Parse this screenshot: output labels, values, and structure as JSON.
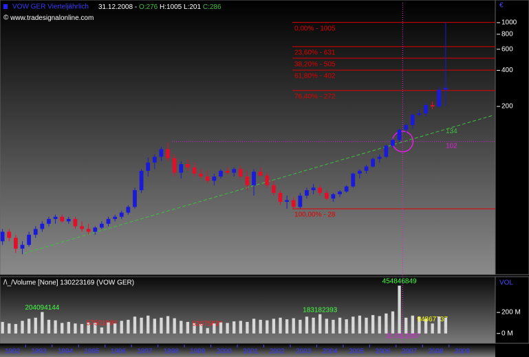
{
  "header": {
    "symbol": "VOW GER Vierteljährlich",
    "date": "31.12.2008 -",
    "open": "O:276",
    "high_low": "H:1005 L:201",
    "close": "C:286",
    "source": "www.tradesignalonline.com",
    "currency": "€"
  },
  "chart_data": [
    {
      "type": "candlestick",
      "x": [
        1992.125,
        1992.375,
        1992.625,
        1992.875,
        1993.125,
        1993.375,
        1993.625,
        1993.875,
        1994.125,
        1994.375,
        1994.625,
        1994.875,
        1995.125,
        1995.375,
        1995.625,
        1995.875,
        1996.125,
        1996.375,
        1996.625,
        1996.875,
        1997.125,
        1997.375,
        1997.625,
        1997.875,
        1998.125,
        1998.375,
        1998.625,
        1998.875,
        1999.125,
        1999.375,
        1999.625,
        1999.875,
        2000.125,
        2000.375,
        2000.625,
        2000.875,
        2001.125,
        2001.375,
        2001.625,
        2001.875,
        2002.125,
        2002.375,
        2002.625,
        2002.875,
        2003.125,
        2003.375,
        2003.625,
        2003.875,
        2004.125,
        2004.375,
        2004.625,
        2004.875,
        2005.125,
        2005.375,
        2005.625,
        2005.875,
        2006.125,
        2006.375,
        2006.625,
        2006.875,
        2007.125,
        2007.375,
        2007.625,
        2007.875,
        2008.125,
        2008.375,
        2008.625,
        2008.875
      ],
      "open": [
        15,
        18,
        16,
        13,
        14,
        17,
        19,
        21,
        23,
        24,
        22,
        23,
        20,
        19,
        18,
        19.5,
        21,
        23,
        24,
        26,
        29,
        40,
        58,
        68,
        76,
        88,
        74,
        56,
        66,
        62,
        55,
        52,
        48,
        52,
        58,
        56,
        60,
        52,
        44,
        57,
        53,
        44,
        38,
        32,
        33,
        29,
        36,
        40,
        42,
        38,
        34,
        37,
        39,
        43,
        55,
        58,
        63,
        73,
        76,
        94,
        105,
        128,
        140,
        170,
        175,
        205,
        200,
        276
      ],
      "high": [
        19,
        19,
        17,
        15,
        18,
        20,
        22,
        24,
        25,
        25,
        24,
        24,
        22,
        21,
        20,
        22,
        24,
        25,
        27,
        30,
        42,
        60,
        75,
        80,
        92,
        100,
        80,
        70,
        72,
        68,
        60,
        58,
        55,
        60,
        62,
        62,
        64,
        58,
        60,
        62,
        56,
        48,
        40,
        36,
        35,
        38,
        42,
        45,
        44,
        40,
        38,
        40,
        44,
        56,
        60,
        65,
        75,
        80,
        96,
        108,
        130,
        145,
        175,
        190,
        215,
        220,
        290,
        1005
      ],
      "low": [
        14,
        15,
        12,
        11.7,
        13.5,
        16,
        18,
        20,
        21,
        21.5,
        21,
        19,
        18,
        17,
        17,
        19,
        20,
        22,
        23,
        25,
        28,
        38,
        52,
        60,
        70,
        70,
        52,
        50,
        58,
        52,
        50,
        46,
        44,
        50,
        54,
        52,
        50,
        40,
        36,
        52,
        42,
        36,
        30,
        28,
        28,
        28,
        34,
        37,
        36,
        33,
        32,
        35,
        38,
        42,
        50,
        55,
        62,
        68,
        74,
        90,
        100,
        120,
        130,
        165,
        165,
        190,
        195,
        201
      ],
      "close": [
        18,
        16,
        13,
        14,
        17,
        19,
        21,
        23,
        24,
        22,
        23,
        20,
        19,
        18,
        19.5,
        21,
        23,
        24,
        26,
        29,
        40,
        58,
        68,
        76,
        88,
        74,
        56,
        66,
        62,
        55,
        52,
        48,
        52,
        58,
        56,
        60,
        52,
        44,
        57,
        53,
        44,
        38,
        32,
        33,
        29,
        36,
        40,
        42,
        38,
        34,
        37,
        39,
        43,
        55,
        58,
        63,
        73,
        76,
        94,
        105,
        128,
        140,
        170,
        175,
        205,
        200,
        276,
        286
      ],
      "up_color": "#1a1ad8",
      "down_color": "#e0102a",
      "xlim": [
        1992.03,
        2010.75
      ],
      "ylim": [
        7.9,
        1466
      ],
      "log_scale": true,
      "yticks": [
        200,
        400,
        600,
        800,
        1000
      ],
      "fib_color": "#e00000",
      "fib_levels": [
        {
          "label": "0,00% - 1005",
          "value": 1005
        },
        {
          "label": "23,60% - 631",
          "value": 631
        },
        {
          "label": "38,20% - 505",
          "value": 505
        },
        {
          "label": "61,80% - 402",
          "value": 402
        },
        {
          "label": "76,40% - 272",
          "value": 272
        },
        {
          "label": "100,00% - 28",
          "value": 28
        }
      ],
      "trend": {
        "x": [
          1992.94,
          2010.64
        ],
        "y": [
          11.9,
          168
        ],
        "color": "#40c040"
      },
      "trend_label": 134,
      "marker": {
        "label": "31.03.2007",
        "x": 2007.25,
        "y": 102,
        "color": "#e020e0"
      }
    },
    {
      "type": "bar",
      "title": "/\\_/Volume [None] 130223169 (VOW GER)",
      "axis_label": "VOL",
      "x": [
        1992.125,
        1992.375,
        1992.625,
        1992.875,
        1993.125,
        1993.375,
        1993.625,
        1993.875,
        1994.125,
        1994.375,
        1994.625,
        1994.875,
        1995.125,
        1995.375,
        1995.625,
        1995.875,
        1996.125,
        1996.375,
        1996.625,
        1996.875,
        1997.125,
        1997.375,
        1997.625,
        1997.875,
        1998.125,
        1998.375,
        1998.625,
        1998.875,
        1999.125,
        1999.375,
        1999.625,
        1999.875,
        2000.125,
        2000.375,
        2000.625,
        2000.875,
        2001.125,
        2001.375,
        2001.625,
        2001.875,
        2002.125,
        2002.375,
        2002.625,
        2002.875,
        2003.125,
        2003.375,
        2003.625,
        2003.875,
        2004.125,
        2004.375,
        2004.625,
        2004.875,
        2005.125,
        2005.375,
        2005.625,
        2005.875,
        2006.125,
        2006.375,
        2006.625,
        2006.875,
        2007.125,
        2007.375,
        2007.625,
        2007.875,
        2008.125,
        2008.375,
        2008.625,
        2008.875
      ],
      "values": [
        110000000,
        95000000,
        90000000,
        120000000,
        140000000,
        150000000,
        204094144,
        130000000,
        125000000,
        100000000,
        110000000,
        95000000,
        90000000,
        105000000,
        100000000,
        57501898,
        105000000,
        95000000,
        120000000,
        130000000,
        160000000,
        150000000,
        170000000,
        140000000,
        150000000,
        165000000,
        145000000,
        120000000,
        110000000,
        100000000,
        90000000,
        52075839,
        95000000,
        105000000,
        100000000,
        115000000,
        120000000,
        110000000,
        140000000,
        130000000,
        125000000,
        140000000,
        150000000,
        135000000,
        145000000,
        130000000,
        160000000,
        150000000,
        183182393,
        140000000,
        130000000,
        150000000,
        135000000,
        160000000,
        170000000,
        150000000,
        175000000,
        165000000,
        190000000,
        210000000,
        454846849,
        150000000,
        170000000,
        160000000,
        140000000,
        94867737,
        160000000,
        150000000
      ],
      "value_labels": [
        null,
        null,
        null,
        null,
        null,
        null,
        "204094144",
        null,
        null,
        null,
        null,
        null,
        null,
        null,
        null,
        "57501898",
        null,
        null,
        null,
        null,
        null,
        null,
        null,
        null,
        null,
        null,
        null,
        null,
        null,
        null,
        null,
        "52075839",
        null,
        null,
        null,
        null,
        null,
        null,
        null,
        null,
        null,
        null,
        null,
        null,
        null,
        null,
        null,
        null,
        "183182393",
        null,
        null,
        null,
        null,
        null,
        null,
        null,
        null,
        null,
        null,
        null,
        "454846849",
        null,
        null,
        null,
        null,
        "94867737",
        null,
        null
      ],
      "value_label_colors": [
        null,
        null,
        null,
        null,
        null,
        null,
        "#40ff40",
        null,
        null,
        null,
        null,
        null,
        null,
        null,
        null,
        "#ff2020",
        null,
        null,
        null,
        null,
        null,
        null,
        null,
        null,
        null,
        null,
        null,
        null,
        null,
        null,
        null,
        "#ff2020",
        null,
        null,
        null,
        null,
        null,
        null,
        null,
        null,
        null,
        null,
        null,
        null,
        null,
        null,
        null,
        null,
        "#40ff40",
        null,
        null,
        null,
        null,
        null,
        null,
        null,
        null,
        null,
        null,
        null,
        "#40ff40",
        null,
        null,
        null,
        null,
        "#ffff00",
        null,
        null
      ],
      "color": "#d8d8d8",
      "xlim": [
        1992.03,
        2010.75
      ],
      "ylim": [
        -93000000,
        540000000
      ],
      "yticks": [
        {
          "value": 0,
          "label": "0 M"
        },
        {
          "value": 200000000,
          "label": "200 M"
        }
      ],
      "xticks": [
        1992,
        1993,
        1994,
        1995,
        1996,
        1997,
        1998,
        1999,
        2000,
        2001,
        2002,
        2003,
        2004,
        2005,
        2006,
        2007,
        2008,
        2009
      ]
    }
  ]
}
